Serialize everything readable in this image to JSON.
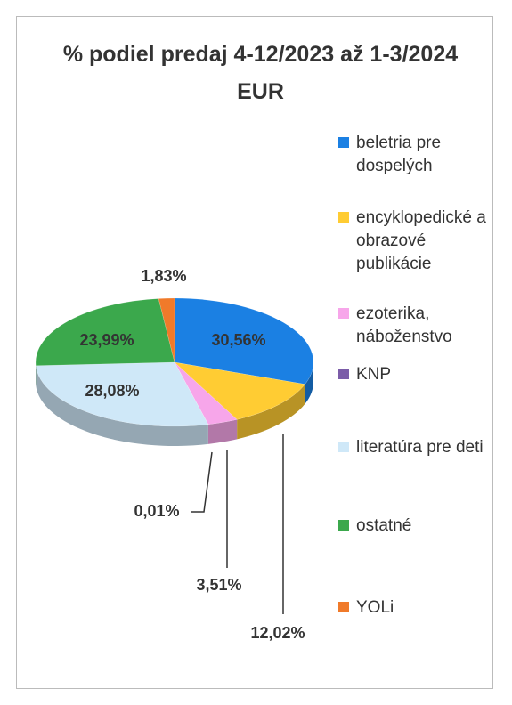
{
  "chart_data": {
    "type": "pie",
    "title": "% podiel predaj 4-12/2023 až 1-3/2024 EUR",
    "categories": [
      "beletria pre dospelých",
      "encyklopedické a obrazové publikácie",
      "ezoterika, náboženstvo",
      "KNP",
      "literatúra pre deti",
      "ostatné",
      "YOLi"
    ],
    "values": [
      30.56,
      12.02,
      3.51,
      0.01,
      28.08,
      23.99,
      1.83
    ],
    "value_labels": [
      "30,56%",
      "12,02%",
      "3,51%",
      "0,01%",
      "28,08%",
      "23,99%",
      "1,83%"
    ],
    "colors": [
      "#1b80e3",
      "#ffcc33",
      "#f7a6ea",
      "#7b5ca8",
      "#cfe8f8",
      "#3ba84c",
      "#f07a2a"
    ],
    "legend": "right"
  }
}
